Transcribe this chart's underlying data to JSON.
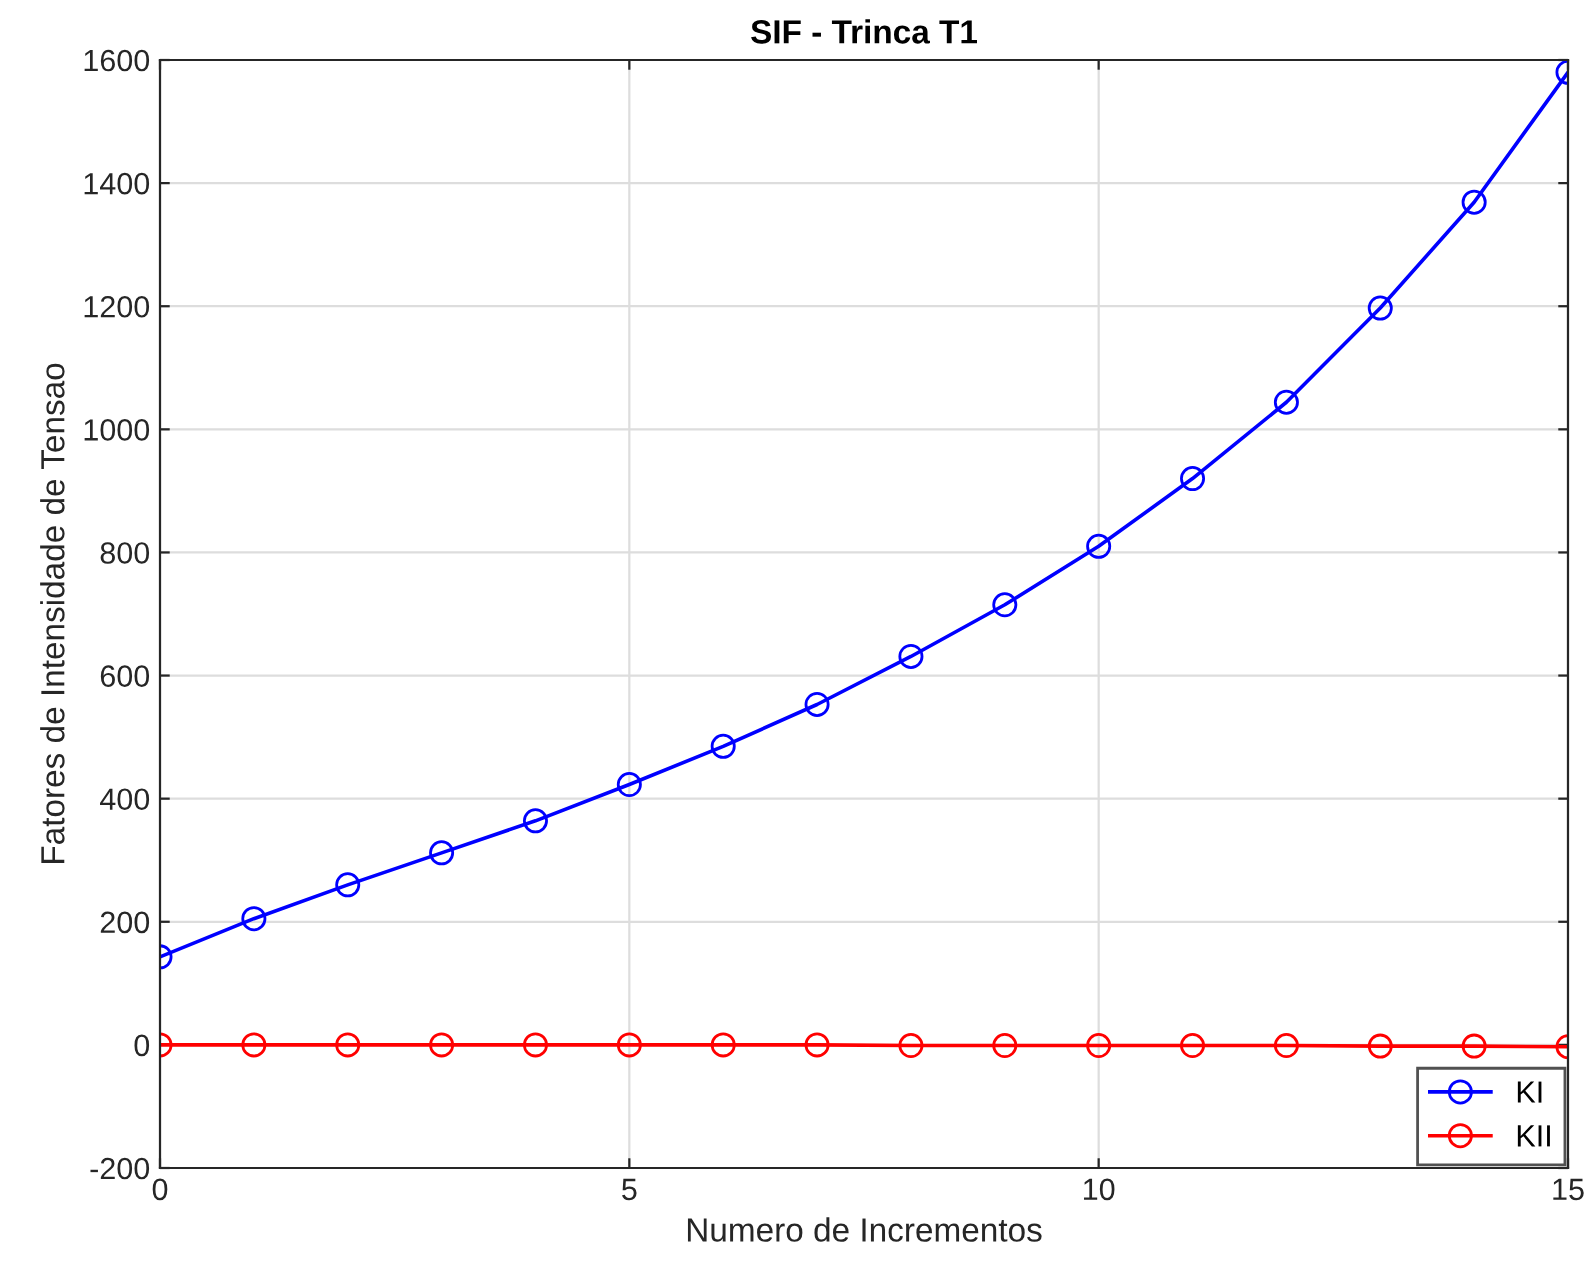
{
  "chart_data": {
    "type": "line",
    "title": "SIF - Trinca T1",
    "xlabel": "Numero de Incrementos",
    "ylabel": "Fatores de Intensidade de Tensao",
    "x": [
      0,
      1,
      2,
      3,
      4,
      5,
      6,
      7,
      8,
      9,
      10,
      11,
      12,
      13,
      14,
      15
    ],
    "series": [
      {
        "name": "KI",
        "color": "#0000ff",
        "values": [
          143,
          205,
          260,
          312,
          364,
          423,
          485,
          553,
          631,
          715,
          810,
          920,
          1044,
          1197,
          1369,
          1580
        ]
      },
      {
        "name": "KII",
        "color": "#ff0000",
        "values": [
          0,
          0,
          0,
          0,
          0,
          0,
          0,
          0,
          -1,
          -1,
          -1,
          -1,
          -1,
          -2,
          -2,
          -3
        ]
      }
    ],
    "xlim": [
      0,
      15
    ],
    "xticks": [
      0,
      5,
      10,
      15
    ],
    "ylim": [
      -200,
      1600
    ],
    "yticks": [
      -200,
      0,
      200,
      400,
      600,
      800,
      1000,
      1200,
      1400,
      1600
    ],
    "grid": true,
    "legend": "bottom right",
    "marker": "circle",
    "line_style": "solid"
  }
}
